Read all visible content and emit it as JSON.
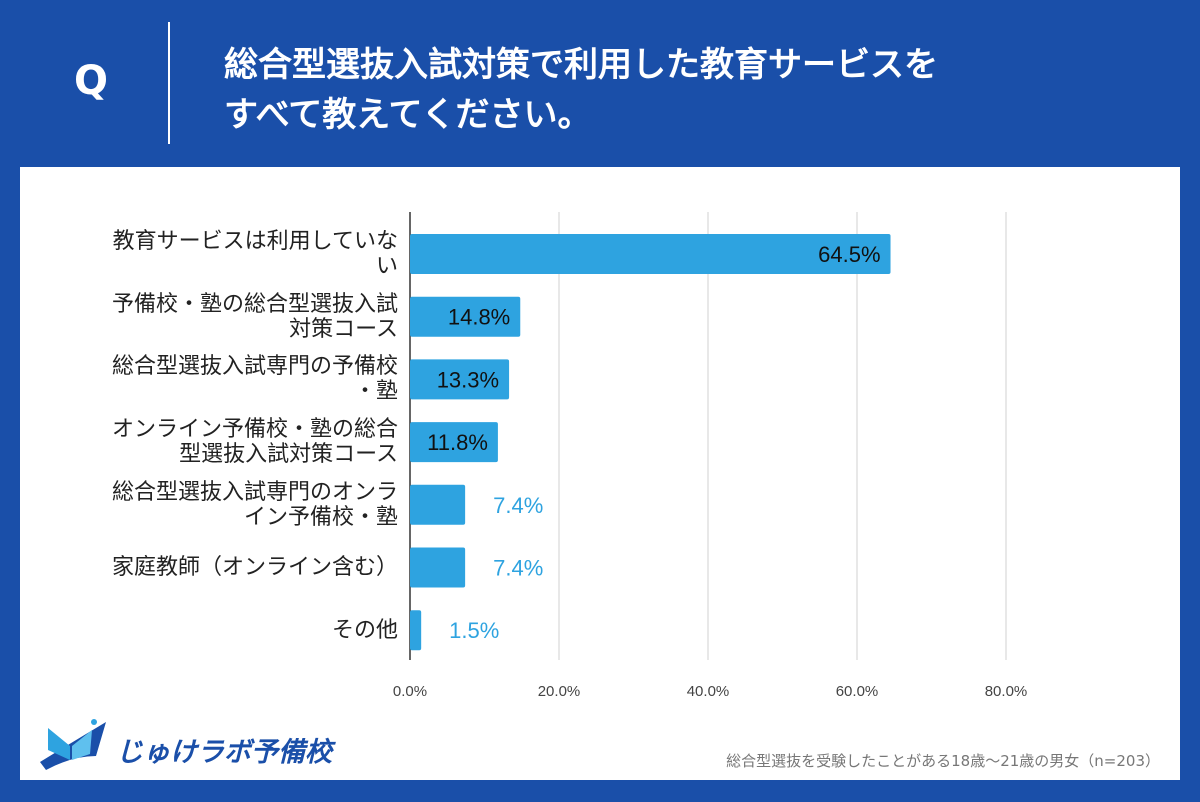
{
  "header": {
    "q_label": "Q",
    "question_line1": "総合型選抜入試対策で利用した教育サービスを",
    "question_line2": "すべて教えてください。"
  },
  "footer": {
    "brand": "じゅけラボ予備校",
    "note": "総合型選抜を受験したことがある18歳～21歳の男女（n=203）"
  },
  "colors": {
    "background": "#1a4fa9",
    "bar": "#2ea3e0",
    "outside_label": "#2ea3e0",
    "inside_label": "#111111"
  },
  "chart_data": {
    "type": "bar",
    "orientation": "horizontal",
    "categories": [
      "教育サービスは利用していない",
      "予備校・塾の総合型選抜入試対策コース",
      "総合型選抜入試専門の予備校・塾",
      "オンライン予備校・塾の総合型選抜入試対策コース",
      "総合型選抜入試専門のオンライン予備校・塾",
      "家庭教師（オンライン含む）",
      "その他"
    ],
    "values": [
      64.5,
      14.8,
      13.3,
      11.8,
      7.4,
      7.4,
      1.5
    ],
    "data_labels": [
      "64.5%",
      "14.8%",
      "13.3%",
      "11.8%",
      "7.4%",
      "7.4%",
      "1.5%"
    ],
    "xlim": [
      0,
      80
    ],
    "xticks": [
      "0.0%",
      "20.0%",
      "40.0%",
      "60.0%",
      "80.0%"
    ],
    "grid": true
  }
}
